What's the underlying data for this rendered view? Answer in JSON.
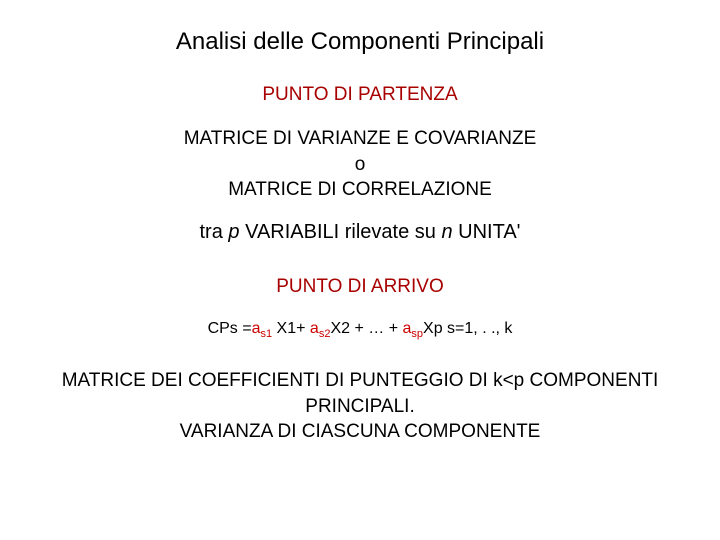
{
  "title": "Analisi delle Componenti Principali",
  "start_label": "PUNTO DI PARTENZA",
  "matrix_block": {
    "line1": "MATRICE DI VARIANZE E COVARIANZE",
    "line2": "o",
    "line3": "MATRICE DI CORRELAZIONE"
  },
  "vars_line": {
    "pre": "tra ",
    "p": "p",
    "mid": " VARIABILI rilevate su ",
    "n": "n",
    "post": " UNITA'"
  },
  "end_label": "PUNTO DI ARRIVO",
  "formula": {
    "lead": "CPs =",
    "a": "a",
    "s1": "s1",
    "x1": " X1+ ",
    "s2": "s2",
    "x2": "X2 + … + ",
    "sp": "sp",
    "xp": "Xp",
    "range": "    s=1, . ., k"
  },
  "coeff_block": {
    "line1": "MATRICE DEI COEFFICIENTI DI PUNTEGGIO DI k<p COMPONENTI",
    "line2": "PRINCIPALI.",
    "line3": "VARIANZA DI CIASCUNA COMPONENTE"
  },
  "colors": {
    "heading_red": "#a80000",
    "formula_red": "#cc0000",
    "text": "#000000",
    "background": "#ffffff"
  },
  "fonts": {
    "title_family": "Arial",
    "body_family": "Verdana",
    "title_size_pt": 18,
    "section_size_pt": 14,
    "body_size_pt": 14,
    "formula_size_pt": 12
  }
}
